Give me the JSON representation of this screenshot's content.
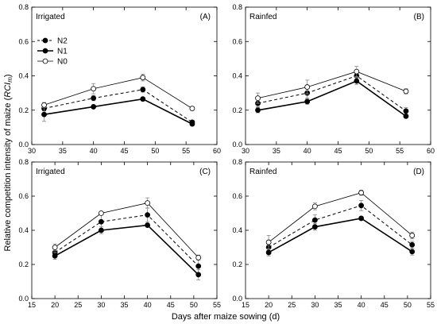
{
  "figure": {
    "ylabel_pre": "Relative competition intensity of maize (",
    "ylabel_em": "RCI",
    "ylabel_sub": "m",
    "ylabel_post": ")",
    "xlabel": "Days after maize sowing (d)"
  },
  "legend": [
    {
      "name": "N2",
      "style": "dashed",
      "marker": "filled"
    },
    {
      "name": "N1",
      "style": "thick",
      "marker": "filled"
    },
    {
      "name": "N0",
      "style": "thin",
      "marker": "open"
    }
  ],
  "chart_data": [
    {
      "type": "line",
      "panel": "(A)",
      "label": "Irrigated",
      "xlim": [
        30,
        60
      ],
      "xticks": [
        30,
        35,
        40,
        45,
        50,
        55,
        60
      ],
      "ylim": [
        0,
        0.8
      ],
      "yticks": [
        0.0,
        0.2,
        0.4,
        0.6,
        0.8
      ],
      "x": [
        32,
        40,
        48,
        56
      ],
      "series": [
        {
          "name": "N2",
          "values": [
            0.21,
            0.27,
            0.32,
            0.13
          ],
          "err": [
            0.015,
            0.015,
            0.015,
            0.01
          ]
        },
        {
          "name": "N1",
          "values": [
            0.175,
            0.22,
            0.265,
            0.12
          ],
          "err": [
            0.04,
            0.01,
            0.01,
            0.01
          ]
        },
        {
          "name": "N0",
          "values": [
            0.23,
            0.325,
            0.39,
            0.21
          ],
          "err": [
            0.015,
            0.03,
            0.02,
            0.01
          ]
        }
      ]
    },
    {
      "type": "line",
      "panel": "(B)",
      "label": "Rainfed",
      "xlim": [
        30,
        60
      ],
      "xticks": [
        30,
        35,
        40,
        45,
        50,
        55,
        60
      ],
      "ylim": [
        0,
        0.8
      ],
      "yticks": [
        0.0,
        0.2,
        0.4,
        0.6,
        0.8
      ],
      "x": [
        32,
        40,
        48,
        56
      ],
      "series": [
        {
          "name": "N2",
          "values": [
            0.24,
            0.3,
            0.4,
            0.195
          ],
          "err": [
            0.02,
            0.03,
            0.03,
            0.02
          ]
        },
        {
          "name": "N1",
          "values": [
            0.2,
            0.25,
            0.37,
            0.165
          ],
          "err": [
            0.015,
            0.015,
            0.02,
            0.01
          ]
        },
        {
          "name": "N0",
          "values": [
            0.27,
            0.335,
            0.425,
            0.31
          ],
          "err": [
            0.03,
            0.04,
            0.03,
            0.015
          ]
        }
      ]
    },
    {
      "type": "line",
      "panel": "(C)",
      "label": "Irrigated",
      "xlim": [
        15,
        55
      ],
      "xticks": [
        15,
        20,
        25,
        30,
        35,
        40,
        45,
        50,
        55
      ],
      "ylim": [
        0,
        0.8
      ],
      "yticks": [
        0.0,
        0.2,
        0.4,
        0.6,
        0.8
      ],
      "x": [
        20,
        30,
        40,
        51
      ],
      "series": [
        {
          "name": "N2",
          "values": [
            0.27,
            0.45,
            0.49,
            0.19
          ],
          "err": [
            0.02,
            0.04,
            0.04,
            0.04
          ]
        },
        {
          "name": "N1",
          "values": [
            0.25,
            0.4,
            0.43,
            0.14
          ],
          "err": [
            0.02,
            0.02,
            0.01,
            0.03
          ]
        },
        {
          "name": "N0",
          "values": [
            0.3,
            0.5,
            0.56,
            0.24
          ],
          "err": [
            0.02,
            0.01,
            0.03,
            0.015
          ]
        }
      ]
    },
    {
      "type": "line",
      "panel": "(D)",
      "label": "Rainfed",
      "xlim": [
        15,
        55
      ],
      "xticks": [
        15,
        20,
        25,
        30,
        35,
        40,
        45,
        50,
        55
      ],
      "ylim": [
        0,
        0.8
      ],
      "yticks": [
        0.0,
        0.2,
        0.4,
        0.6,
        0.8
      ],
      "x": [
        20,
        30,
        40,
        51
      ],
      "series": [
        {
          "name": "N2",
          "values": [
            0.3,
            0.46,
            0.545,
            0.315
          ],
          "err": [
            0.02,
            0.03,
            0.03,
            0.02
          ]
        },
        {
          "name": "N1",
          "values": [
            0.27,
            0.42,
            0.47,
            0.275
          ],
          "err": [
            0.02,
            0.02,
            0.01,
            0.02
          ]
        },
        {
          "name": "N0",
          "values": [
            0.33,
            0.54,
            0.62,
            0.37
          ],
          "err": [
            0.04,
            0.02,
            0.015,
            0.02
          ]
        }
      ]
    }
  ]
}
